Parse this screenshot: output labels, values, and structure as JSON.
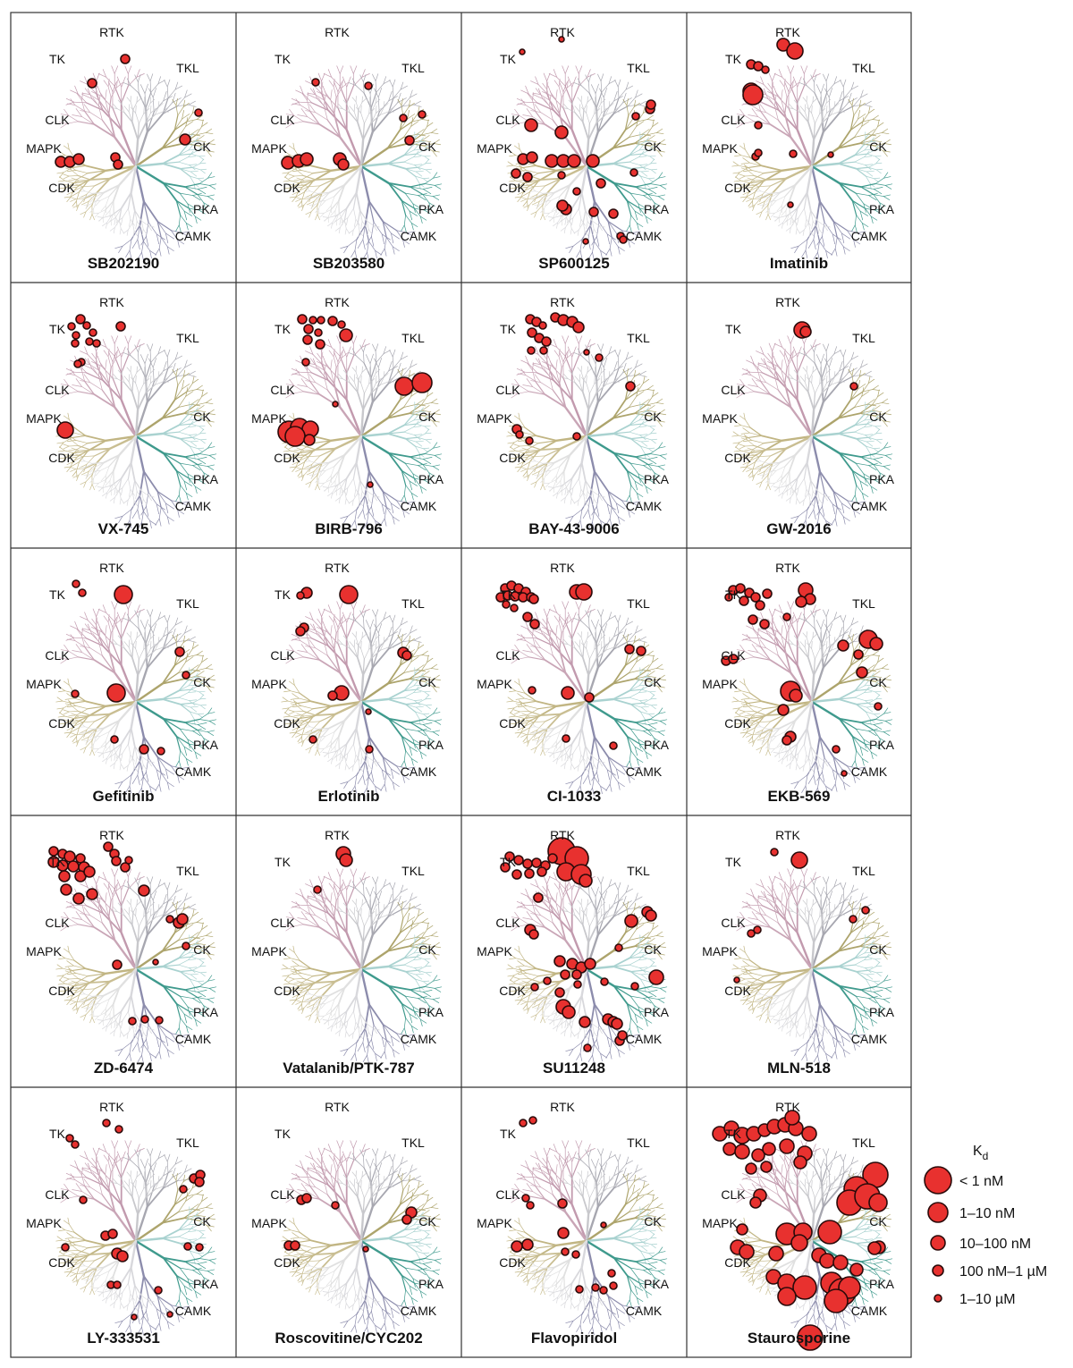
{
  "panels": [
    {
      "name": "SB202190"
    },
    {
      "name": "SB203580"
    },
    {
      "name": "SP600125"
    },
    {
      "name": "Imatinib"
    },
    {
      "name": "VX-745"
    },
    {
      "name": "BIRB-796"
    },
    {
      "name": "BAY-43-9006"
    },
    {
      "name": "GW-2016"
    },
    {
      "name": "Gefitinib"
    },
    {
      "name": "Erlotinib"
    },
    {
      "name": "CI-1033"
    },
    {
      "name": "EKB-569"
    },
    {
      "name": "ZD-6474"
    },
    {
      "name": "Vatalanib/PTK-787"
    },
    {
      "name": "SU11248"
    },
    {
      "name": "MLN-518"
    },
    {
      "name": "LY-333531"
    },
    {
      "name": "Roscovitine/CYC202"
    },
    {
      "name": "Flavopiridol"
    },
    {
      "name": "Staurosporine"
    }
  ],
  "group_labels": [
    "RTK",
    "TK",
    "TKL",
    "CLK",
    "MAPK",
    "CDK",
    "CK",
    "PKA",
    "CAMK"
  ],
  "legend": {
    "title": "K",
    "title_sub": "d",
    "items": [
      "< 1 nM",
      "1–10 nM",
      "10–100 nM",
      "100 nM–1 µM",
      "1–10 µM"
    ]
  }
}
